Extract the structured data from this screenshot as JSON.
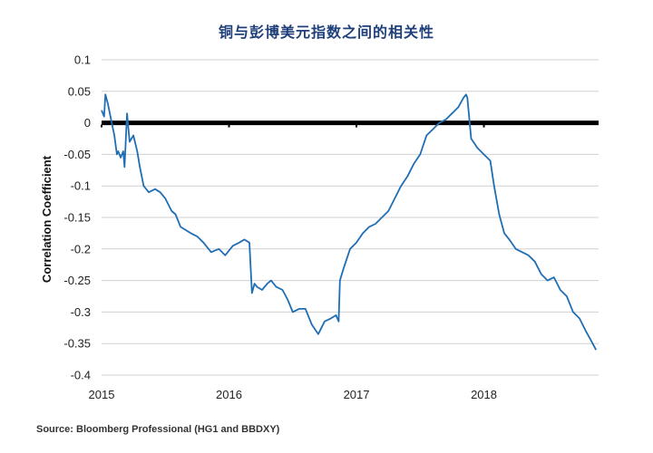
{
  "chart_data": {
    "type": "line",
    "title": "铜与彭博美元指数之间的相关性",
    "ylabel": "Correlation Coefficient",
    "xlabel": "",
    "ylim": [
      -0.4,
      0.1
    ],
    "xlim": [
      2015,
      2018.9
    ],
    "y_ticks": [
      "0.1",
      "0.05",
      "0",
      "-0.05",
      "-0.1",
      "-0.15",
      "-0.2",
      "-0.25",
      "-0.3",
      "-0.35",
      "-0.4"
    ],
    "x_ticks": [
      "2015",
      "2016",
      "2017",
      "2018"
    ],
    "grid": true,
    "colors": {
      "series": "#1f6eb4",
      "zero_line": "#000000",
      "grid": "#d0d0d0"
    },
    "series": [
      {
        "name": "",
        "x": [
          2015.0,
          2015.02,
          2015.03,
          2015.05,
          2015.07,
          2015.08,
          2015.1,
          2015.12,
          2015.13,
          2015.15,
          2015.17,
          2015.18,
          2015.2,
          2015.22,
          2015.25,
          2015.28,
          2015.3,
          2015.33,
          2015.37,
          2015.42,
          2015.46,
          2015.5,
          2015.55,
          2015.58,
          2015.62,
          2015.66,
          2015.7,
          2015.75,
          2015.8,
          2015.86,
          2015.92,
          2015.97,
          2016.03,
          2016.08,
          2016.12,
          2016.16,
          2016.18,
          2016.2,
          2016.22,
          2016.26,
          2016.3,
          2016.33,
          2016.37,
          2016.42,
          2016.46,
          2016.5,
          2016.55,
          2016.6,
          2016.65,
          2016.7,
          2016.75,
          2016.8,
          2016.84,
          2016.86,
          2016.87,
          2016.9,
          2016.95,
          2017.0,
          2017.05,
          2017.1,
          2017.15,
          2017.2,
          2017.25,
          2017.3,
          2017.35,
          2017.4,
          2017.45,
          2017.5,
          2017.55,
          2017.6,
          2017.65,
          2017.7,
          2017.75,
          2017.8,
          2017.84,
          2017.86,
          2017.87,
          2017.9,
          2017.95,
          2018.0,
          2018.05,
          2018.08,
          2018.12,
          2018.16,
          2018.2,
          2018.25,
          2018.3,
          2018.35,
          2018.4,
          2018.45,
          2018.5,
          2018.55,
          2018.6,
          2018.65,
          2018.7,
          2018.75,
          2018.8,
          2018.84,
          2018.88
        ],
        "y": [
          0.02,
          0.01,
          0.045,
          0.03,
          0.01,
          0.0,
          -0.02,
          -0.05,
          -0.045,
          -0.055,
          -0.045,
          -0.07,
          0.015,
          -0.03,
          -0.02,
          -0.045,
          -0.07,
          -0.1,
          -0.11,
          -0.105,
          -0.11,
          -0.12,
          -0.14,
          -0.145,
          -0.165,
          -0.17,
          -0.175,
          -0.18,
          -0.19,
          -0.205,
          -0.2,
          -0.21,
          -0.195,
          -0.19,
          -0.185,
          -0.19,
          -0.27,
          -0.255,
          -0.26,
          -0.265,
          -0.255,
          -0.25,
          -0.26,
          -0.265,
          -0.28,
          -0.3,
          -0.295,
          -0.295,
          -0.32,
          -0.335,
          -0.315,
          -0.31,
          -0.305,
          -0.315,
          -0.25,
          -0.23,
          -0.2,
          -0.19,
          -0.175,
          -0.165,
          -0.16,
          -0.15,
          -0.14,
          -0.12,
          -0.1,
          -0.085,
          -0.065,
          -0.05,
          -0.02,
          -0.01,
          0.0,
          0.005,
          0.015,
          0.025,
          0.04,
          0.045,
          0.04,
          -0.025,
          -0.04,
          -0.05,
          -0.06,
          -0.1,
          -0.145,
          -0.175,
          -0.185,
          -0.2,
          -0.205,
          -0.21,
          -0.22,
          -0.24,
          -0.25,
          -0.245,
          -0.265,
          -0.275,
          -0.3,
          -0.31,
          -0.33,
          -0.345,
          -0.36
        ]
      }
    ],
    "zero_line": 0
  },
  "source": "Source: Bloomberg Professional (HG1 and BBDXY)"
}
